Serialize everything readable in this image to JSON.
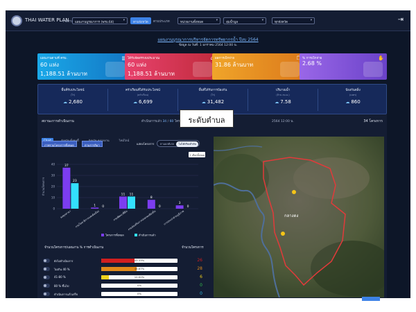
{
  "app": {
    "title": "THAI WATER PLAN",
    "logout_icon": "logout-icon"
  },
  "filters": {
    "f1_label": "รายงาน",
    "f1_value": "แผนงานบูรณาการ (พรบ.64)",
    "f2_label": "ตามจังหวัด",
    "f3_label": "ตามประเภท",
    "f3_value": "หน่วยงานทั้งหมด",
    "f4_value": "ลุ่มน้ำมูล",
    "f5_value": "ทุกจังหวัด"
  },
  "header": {
    "title": "แผนงานบูรณาการบริหารจัดการทรัพยากรน้ำ ปีงบ 2564",
    "subtitle": "ข้อมูล ณ วันที่: 1 มกราคม 2564 12:00 น."
  },
  "cards": [
    {
      "label": "แผนงานตามที่ ครม.",
      "value1": "60 แห่ง",
      "value2": "1,188.51 ล้านบาท",
      "color_from": "#1aa8e8",
      "color_to": "#1377c4",
      "icon": "chart-icon"
    },
    {
      "label": "ได้รับจัดสรรงบประมาณ",
      "value1": "60 แห่ง",
      "value2": "1,188.51 ล้านบาท",
      "color_from": "#e8426d",
      "color_to": "#c12b3d",
      "icon": "bank-icon"
    },
    {
      "label": "ผลการเบิกจ่าย",
      "value1": "31.86 ล้านบาท",
      "value2": "",
      "color_from": "#f0a52a",
      "color_to": "#dc7a1b",
      "icon": "copy-icon"
    },
    {
      "label": "% การเบิกจ่าย",
      "value1": "2.68 %",
      "value2": "",
      "color_from": "#9a67e8",
      "color_to": "#6a42c8",
      "icon": "hand-money-icon"
    }
  ],
  "stats": [
    {
      "label": "พื้นที่รับประโยชน์",
      "unit": "(ไร่)",
      "value": "2,680"
    },
    {
      "label": "ครัวเรือนที่ได้รับประโยชน์",
      "unit": "(ครัวเรือน)",
      "value": "6,699"
    },
    {
      "label": "พื้นที่ได้รับการป้องกัน",
      "unit": "(ไร่)",
      "value": "31,482"
    },
    {
      "label": "ปริมาณน้ำ",
      "unit": "(ล้าน ลบ.ม.)",
      "value": "7.58"
    },
    {
      "label": "ป้องกันตลิ่ง",
      "unit": "(เมตร)",
      "value": "860"
    }
  ],
  "left_panel": {
    "title": "สถานะการดำเนินงาน",
    "count_label": "ดำเนินการแล้ว",
    "count_value": "34",
    "count_total": "60",
    "count_unit": "โครงการ",
    "tabs": [
      "Chart",
      "จังหวัด ทั้งหมดี้",
      "จังหวัด หน่วยงาน",
      "ไทม์ไลน์"
    ],
    "chip1": "ภาพรวมโครงการทั้งหมด",
    "chip2": "ตามการลิมา",
    "toggle_label": "แสดงโครงการ",
    "toggle_off": "ตามผลดีเสล",
    "toggle_on": "ไม่ได้เรียงลำดับ",
    "legend_btn": "+ เลือกทั้งหมด",
    "progress_header": "จำนวนโครงการ/แผนงาน % การดำเนินงาน",
    "progress_count_header": "จำนวนโครงการ"
  },
  "chart_data": {
    "type": "bar",
    "categories": [
      "คงทุกสาขา",
      "กรมโยธาธิการและผังเมือง",
      "กรมพัฒนาที่ดิน",
      "กรมส่งเสริมการปกครองท้องถิ่น",
      "การประปาส่วนภูมิภาค"
    ],
    "series": [
      {
        "name": "โครงการทั้งหมด",
        "values": [
          37,
          1,
          11,
          8,
          3
        ],
        "color": "#7c3df0"
      },
      {
        "name": "ดำเนินการแล้ว",
        "values": [
          23,
          0,
          11,
          0,
          0
        ],
        "color": "#33e0ff"
      }
    ],
    "ylabel": "จำนวนโครงการ",
    "ylim": [
      0,
      40
    ],
    "yticks": [
      0,
      10,
      20,
      30,
      40
    ],
    "grid": true,
    "legend": "bottom"
  },
  "progress": [
    {
      "label": "ยังไม่ดำเนินการ",
      "percent": 43.33,
      "percent_text": "43.33%",
      "count": "26",
      "color": "#d11f1f"
    },
    {
      "label": "ไม่เกิน 40 %",
      "percent": 46.67,
      "percent_text": "46.67%",
      "count": "28",
      "color": "#e08a1a"
    },
    {
      "label": "41-80 %",
      "percent": 10.0,
      "percent_text": "10.00%",
      "count": "6",
      "color": "#f2d21c"
    },
    {
      "label": "80 % ขึ้นไป",
      "percent": 0,
      "percent_text": "0%",
      "count": "0",
      "color": "#33c24d"
    },
    {
      "label": "ดำเนินการแล้วเสร็จ",
      "percent": 0,
      "percent_text": "0%",
      "count": "0",
      "color": "#2fb8e0"
    }
  ],
  "right_panel": {
    "title": "2564 12:00 น.",
    "count": "34 โครงการ",
    "map_place": "กลางดง"
  },
  "overlay": {
    "label": "ระดับตำบล"
  }
}
